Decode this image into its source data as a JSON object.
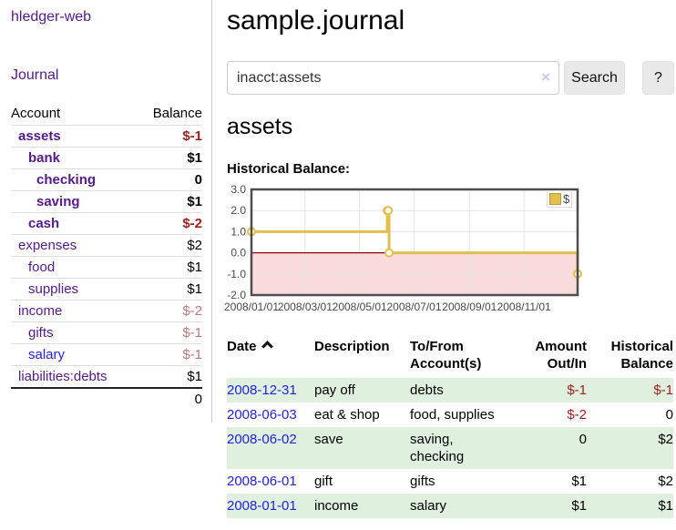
{
  "sidebar": {
    "brand": "hledger-web",
    "nav_journal": "Journal",
    "accounts": {
      "headers": {
        "account": "Account",
        "balance": "Balance"
      },
      "rows": [
        {
          "account": "assets",
          "balance": "$-1",
          "depth": 1,
          "bold": true,
          "negative": "strong"
        },
        {
          "account": "bank",
          "balance": "$1",
          "depth": 2,
          "bold": true,
          "negative": null
        },
        {
          "account": "checking",
          "balance": "0",
          "depth": 3,
          "bold": true,
          "negative": null
        },
        {
          "account": "saving",
          "balance": "$1",
          "depth": 3,
          "bold": true,
          "negative": null
        },
        {
          "account": "cash",
          "balance": "$-2",
          "depth": 2,
          "bold": true,
          "negative": "strong"
        },
        {
          "account": "expenses",
          "balance": "$2",
          "depth": 1,
          "bold": false,
          "negative": null
        },
        {
          "account": "food",
          "balance": "$1",
          "depth": 2,
          "bold": false,
          "negative": null
        },
        {
          "account": "supplies",
          "balance": "$1",
          "depth": 2,
          "bold": false,
          "negative": null
        },
        {
          "account": "income",
          "balance": "$-2",
          "depth": 1,
          "bold": false,
          "negative": "soft"
        },
        {
          "account": "gifts",
          "balance": "$-1",
          "depth": 2,
          "bold": false,
          "negative": "soft"
        },
        {
          "account": "salary",
          "balance": "$-1",
          "depth": 2,
          "bold": false,
          "negative": "soft",
          "link_color": "blue"
        },
        {
          "account": "liabilities:debts",
          "balance": "$1",
          "depth": 1,
          "bold": false,
          "negative": null
        }
      ],
      "total": "0"
    }
  },
  "main": {
    "title": "sample.journal",
    "search": {
      "value": "inacct:assets",
      "clear_icon": "×",
      "button": "Search",
      "help": "?"
    },
    "account_heading": "assets",
    "chart_title": "Historical Balance:"
  },
  "chart_data": {
    "type": "line",
    "title": "Historical Balance:",
    "x_range": [
      "2008-01-01",
      "2008-12-31"
    ],
    "y_range": [
      -2,
      3
    ],
    "y_ticks": [
      3,
      2,
      1,
      0,
      -1,
      -2
    ],
    "x_ticks": [
      "2008/01/01",
      "2008/03/01",
      "2008/05/01",
      "2008/07/01",
      "2008/09/01",
      "2008/11/01"
    ],
    "grid": true,
    "legend_position": "top-right",
    "legend": {
      "label": "$"
    },
    "series": [
      {
        "name": "$",
        "color": "#e3bf4e",
        "step": "after",
        "points": [
          [
            "2008-01-01",
            1
          ],
          [
            "2008-06-01",
            2
          ],
          [
            "2008-06-02",
            2
          ],
          [
            "2008-06-03",
            0
          ],
          [
            "2008-12-31",
            -1
          ]
        ]
      }
    ],
    "negative_region_color": "#fadcdc",
    "zero_line_color": "#8b0000"
  },
  "register_table": {
    "columns": [
      {
        "line1": "Date",
        "line2": ""
      },
      {
        "line1": "Description",
        "line2": ""
      },
      {
        "line1": "To/From",
        "line2": "Account(s)"
      },
      {
        "line1": "Amount",
        "line2": "Out/In"
      },
      {
        "line1": "Historical",
        "line2": "Balance"
      }
    ],
    "rows": [
      {
        "date": "2008-12-31",
        "description": "pay off",
        "accounts": "debts",
        "amount": "$-1",
        "balance": "$-1",
        "amount_negative": true,
        "balance_negative": true
      },
      {
        "date": "2008-06-03",
        "description": "eat & shop",
        "accounts": "food, supplies",
        "amount": "$-2",
        "balance": "0",
        "amount_negative": true,
        "balance_negative": false
      },
      {
        "date": "2008-06-02",
        "description": "save",
        "accounts": "saving,\nchecking",
        "amount": "0",
        "balance": "$2",
        "amount_negative": false,
        "balance_negative": false
      },
      {
        "date": "2008-06-01",
        "description": "gift",
        "accounts": "gifts",
        "amount": "$1",
        "balance": "$2",
        "amount_negative": false,
        "balance_negative": false
      },
      {
        "date": "2008-01-01",
        "description": "income",
        "accounts": "salary",
        "amount": "$1",
        "balance": "$1",
        "amount_negative": false,
        "balance_negative": false
      }
    ]
  }
}
